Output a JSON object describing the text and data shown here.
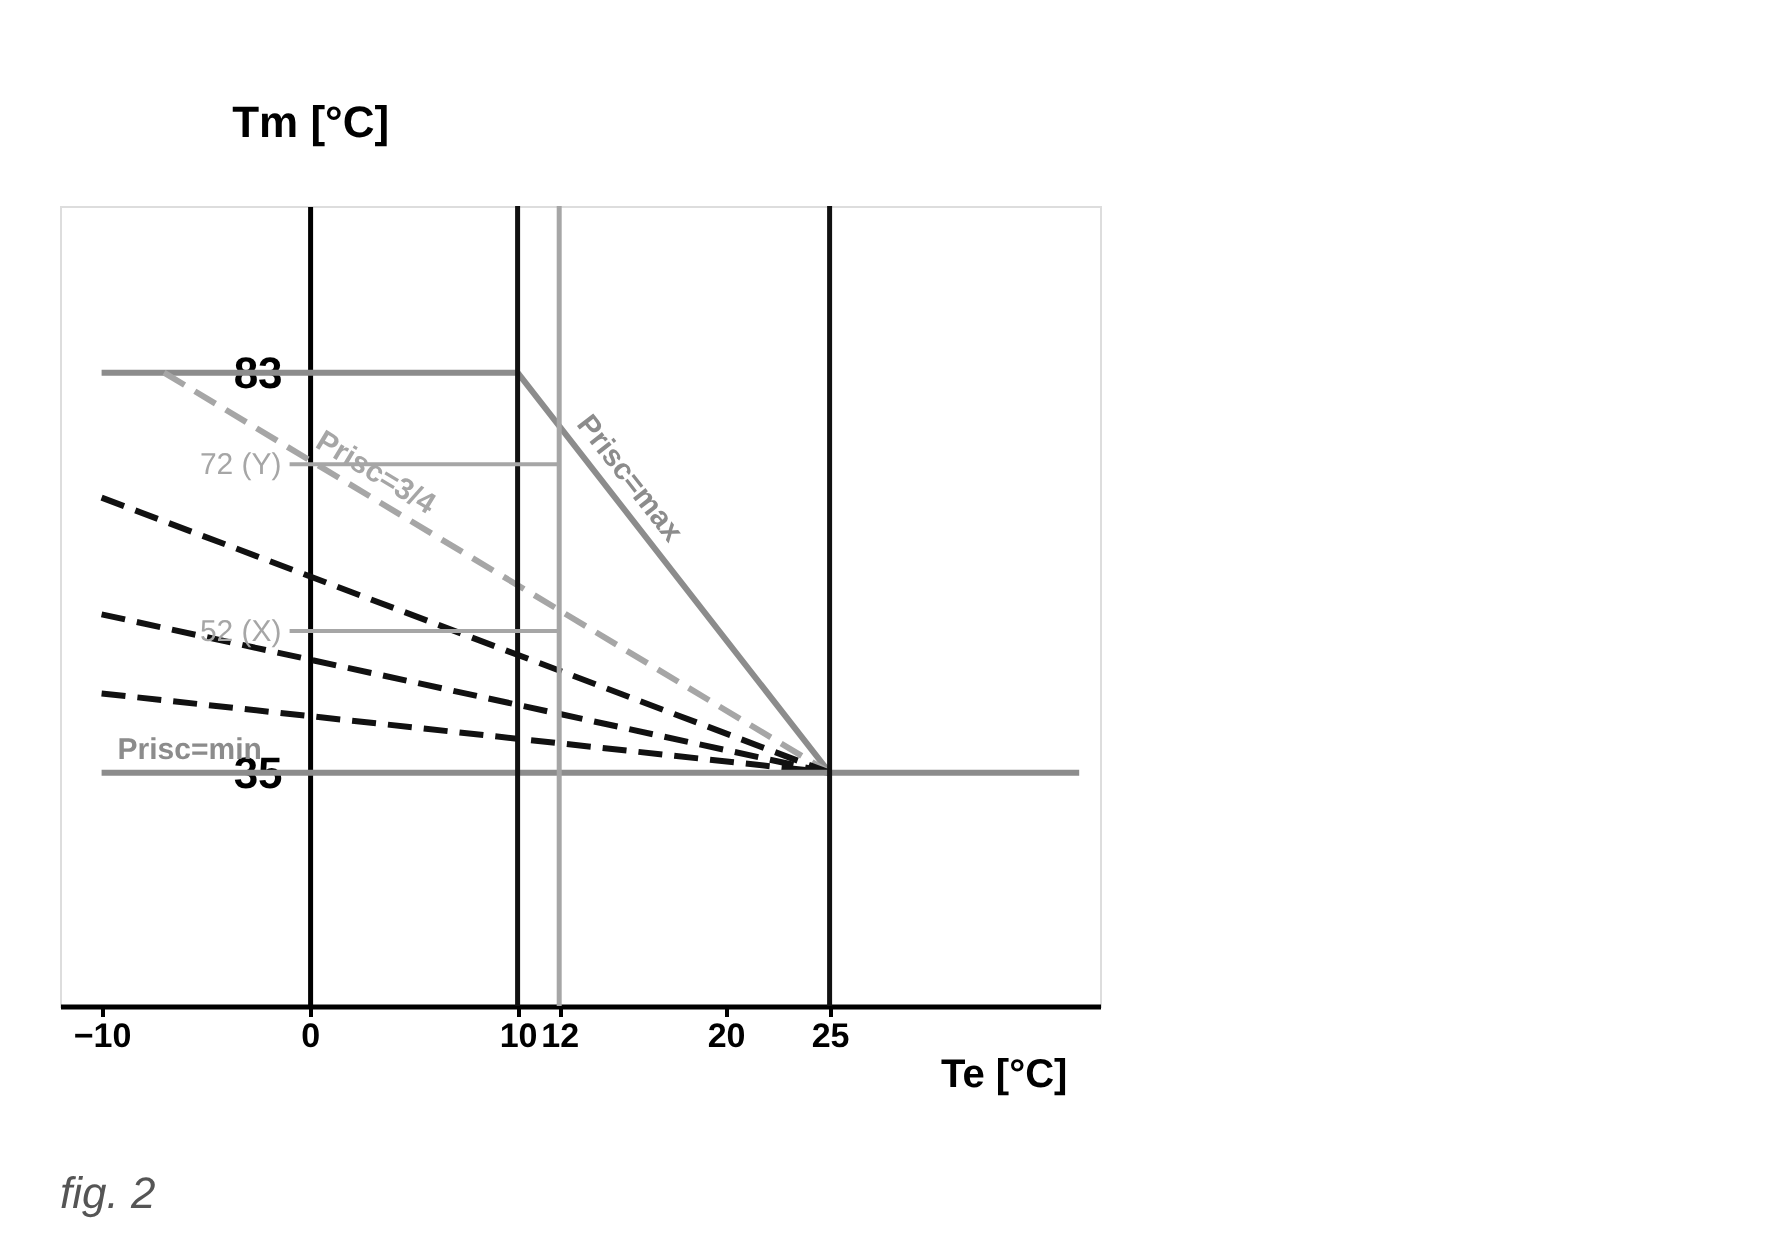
{
  "chart_data": {
    "type": "line",
    "xlabel": "Te [°C]",
    "ylabel": "Tm [°C]",
    "xlim": [
      -12,
      38
    ],
    "ylim": [
      7,
      103
    ],
    "xticks": [
      -10,
      0,
      10,
      12,
      20,
      25
    ],
    "yticks": [
      83,
      35
    ],
    "series": [
      {
        "name": "Prisc=max",
        "color": "#8c8c8c",
        "line_style": "solid",
        "x": [
          -10,
          10,
          25
        ],
        "values": [
          83,
          83,
          35
        ]
      },
      {
        "name": "Prisc=3/4",
        "color": "#a6a6a6",
        "line_style": "dashed",
        "x": [
          -7,
          25
        ],
        "values": [
          83,
          35
        ]
      },
      {
        "color": "#111111",
        "line_style": "dashed",
        "x": [
          -10,
          25
        ],
        "values": [
          68,
          35
        ]
      },
      {
        "color": "#111111",
        "line_style": "dashed",
        "x": [
          -10,
          25
        ],
        "values": [
          54,
          35
        ]
      },
      {
        "color": "#111111",
        "line_style": "dashed",
        "x": [
          -10,
          25
        ],
        "values": [
          44.5,
          35
        ]
      },
      {
        "name": "Prisc=min",
        "color": "#8c8c8c",
        "line_style": "solid",
        "x": [
          -10,
          37
        ],
        "values": [
          35,
          35
        ]
      }
    ],
    "ref_lines": [
      {
        "axis": "x",
        "value": 10,
        "color": "#111111"
      },
      {
        "axis": "x",
        "value": 25,
        "color": "#111111"
      },
      {
        "axis": "x",
        "value": 12,
        "color": "#a6a6a6"
      },
      {
        "axis": "y",
        "value": 72,
        "label": "72 (Y)",
        "color": "#a6a6a6"
      },
      {
        "axis": "y",
        "value": 52,
        "label": "52 (X)",
        "color": "#a6a6a6"
      }
    ],
    "annotations": [
      "fig. 2"
    ],
    "grid": false
  }
}
